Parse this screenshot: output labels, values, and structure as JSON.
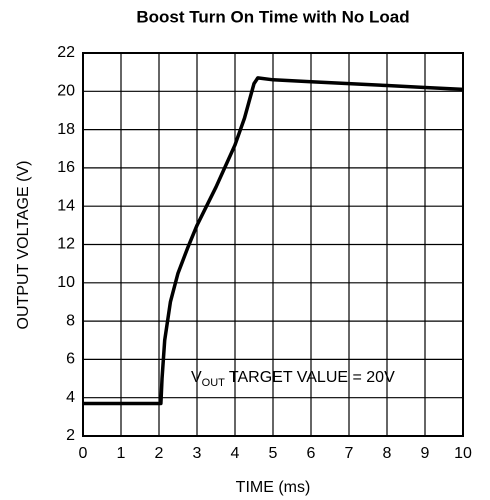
{
  "chart_data": {
    "type": "line",
    "title": "Boost Turn On Time with No Load",
    "xlabel": "TIME (ms)",
    "ylabel": "OUTPUT VOLTAGE (V)",
    "annotation": {
      "main": "V",
      "sub": "OUT",
      "rest": "TARGET VALUE = 20V"
    },
    "x": [
      0,
      0.5,
      1,
      1.5,
      2,
      2.05,
      2.08,
      2.15,
      2.3,
      2.5,
      2.75,
      3,
      3.25,
      3.5,
      3.75,
      4,
      4.25,
      4.5,
      4.6,
      5,
      6,
      7,
      8,
      9,
      10
    ],
    "series": [
      {
        "name": "VOUT",
        "color": "#000000",
        "values": [
          3.7,
          3.7,
          3.7,
          3.7,
          3.7,
          3.7,
          5,
          7,
          9,
          10.5,
          11.8,
          13,
          14,
          15,
          16.1,
          17.2,
          18.6,
          20.4,
          20.7,
          20.6,
          20.5,
          20.4,
          20.3,
          20.2,
          20.1
        ]
      }
    ],
    "xlim": [
      0,
      10
    ],
    "xticks": [
      0,
      1,
      2,
      3,
      4,
      5,
      6,
      7,
      8,
      9,
      10
    ],
    "ylim": [
      2,
      22
    ],
    "yticks": [
      2,
      4,
      6,
      8,
      10,
      12,
      14,
      16,
      18,
      20,
      22
    ],
    "grid": true
  }
}
